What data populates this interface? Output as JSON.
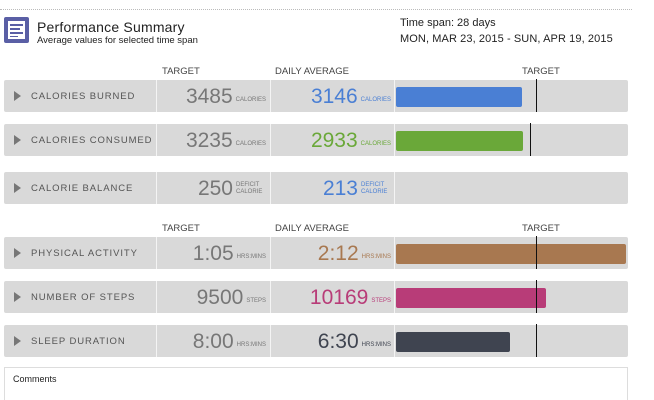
{
  "header": {
    "title": "Performance Summary",
    "subtitle": "Average values for selected time span",
    "timespan": "Time span: 28 days",
    "daterange": "MON, MAR 23, 2015 - SUN, APR 19, 2015"
  },
  "column_headers": {
    "target": "TARGET",
    "daily_average": "DAILY AVERAGE",
    "bar_target": "TARGET"
  },
  "calorie_rows": [
    {
      "label": "CALORIES BURNED",
      "target": "3485",
      "target_unit": "CALORIES",
      "average": "3146",
      "average_unit": "CALORIES",
      "color": "#4a7fd4",
      "bar_fraction": 0.903
    },
    {
      "label": "CALORIES CONSUMED",
      "target": "3235",
      "target_unit": "CALORIES",
      "average": "2933",
      "average_unit": "CALORIES",
      "color": "#6aa839",
      "bar_fraction": 0.907
    },
    {
      "label": "CALORIE BALANCE",
      "target": "250",
      "target_unit": "DEFICIT CALORIE",
      "average": "213",
      "average_unit": "DEFICIT CALORIE",
      "color": "#4a7fd4"
    }
  ],
  "activity_rows": [
    {
      "label": "PHYSICAL ACTIVITY",
      "target": "1:05",
      "target_unit": "HRS:MINS",
      "average": "2:12",
      "average_unit": "HRS:MINS",
      "color": "#a87850",
      "bar_fraction": 2.03
    },
    {
      "label": "NUMBER OF STEPS",
      "target": "9500",
      "target_unit": "STEPS",
      "average": "10169",
      "average_unit": "STEPS",
      "color": "#b83c78",
      "bar_fraction": 1.07
    },
    {
      "label": "SLEEP DURATION",
      "target": "8:00",
      "target_unit": "HRS:MINS",
      "average": "6:30",
      "average_unit": "HRS:MINS",
      "color": "#3f4450",
      "bar_fraction": 0.8125
    }
  ],
  "comments": {
    "label": "Comments"
  }
}
